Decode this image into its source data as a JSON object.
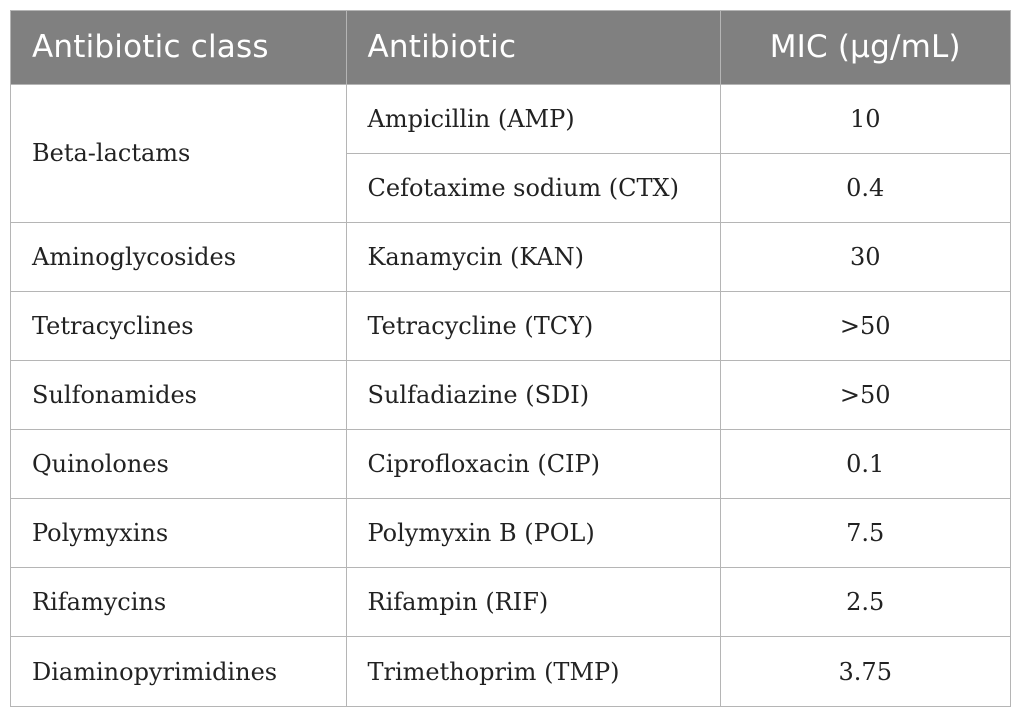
{
  "table": {
    "headers": [
      "Antibiotic class",
      "Antibiotic",
      "MIC (µg/mL)"
    ],
    "groups": [
      {
        "class": "Beta-lactams",
        "rows": [
          {
            "antibiotic": "Ampicillin (AMP)",
            "mic": "10"
          },
          {
            "antibiotic": "Cefotaxime sodium (CTX)",
            "mic": "0.4"
          }
        ]
      },
      {
        "class": "Aminoglycosides",
        "rows": [
          {
            "antibiotic": "Kanamycin (KAN)",
            "mic": "30"
          }
        ]
      },
      {
        "class": "Tetracyclines",
        "rows": [
          {
            "antibiotic": "Tetracycline (TCY)",
            "mic": ">50"
          }
        ]
      },
      {
        "class": "Sulfonamides",
        "rows": [
          {
            "antibiotic": "Sulfadiazine (SDI)",
            "mic": ">50"
          }
        ]
      },
      {
        "class": "Quinolones",
        "rows": [
          {
            "antibiotic": "Ciprofloxacin (CIP)",
            "mic": "0.1"
          }
        ]
      },
      {
        "class": "Polymyxins",
        "rows": [
          {
            "antibiotic": "Polymyxin B (POL)",
            "mic": "7.5"
          }
        ]
      },
      {
        "class": "Rifamycins",
        "rows": [
          {
            "antibiotic": "Rifampin (RIF)",
            "mic": "2.5"
          }
        ]
      },
      {
        "class": "Diaminopyrimidines",
        "rows": [
          {
            "antibiotic": "Trimethoprim (TMP)",
            "mic": "3.75"
          }
        ]
      }
    ]
  }
}
